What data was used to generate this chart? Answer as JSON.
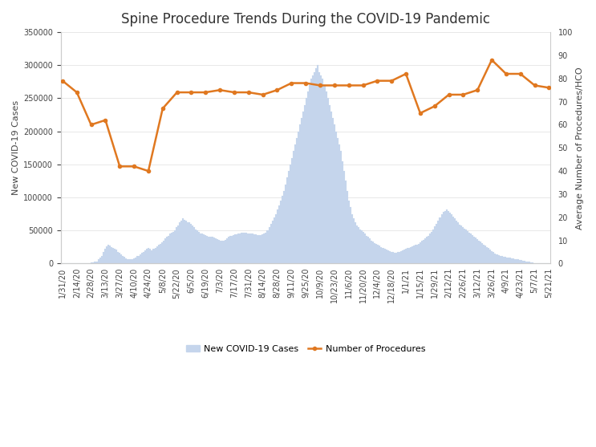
{
  "title": "Spine Procedure Trends During the COVID-19 Pandemic",
  "ylabel_left": "New COVID-19 Cases",
  "ylabel_right": "Average Number of Procedures/HCO",
  "legend_labels": [
    "New COVID-19 Cases",
    "Number of Procedures"
  ],
  "bar_color": "#c5d5ec",
  "bar_edge_color": "#c5d5ec",
  "line_color": "#e07820",
  "line_marker": "o",
  "line_marker_size": 3,
  "line_width": 1.8,
  "ylim_left": [
    0,
    350000
  ],
  "ylim_right": [
    0,
    100
  ],
  "tick_labels": [
    "1/31/20",
    "2/14/20",
    "2/28/20",
    "3/13/20",
    "3/27/20",
    "4/10/20",
    "4/24/20",
    "5/8/20",
    "5/22/20",
    "6/5/20",
    "6/19/20",
    "7/3/20",
    "7/17/20",
    "7/31/20",
    "8/14/20",
    "8/28/20",
    "9/11/20",
    "9/25/20",
    "10/9/20",
    "10/23/20",
    "11/6/20",
    "11/20/20",
    "12/4/20",
    "12/18/20",
    "1/1/21",
    "1/15/21",
    "1/29/21",
    "2/12/21",
    "2/26/21",
    "3/12/21",
    "3/26/21",
    "4/9/21",
    "4/23/21",
    "5/7/21",
    "5/21/21"
  ],
  "procedures": [
    79,
    74,
    60,
    62,
    42,
    42,
    40,
    67,
    74,
    74,
    74,
    75,
    74,
    74,
    73,
    75,
    78,
    78,
    77,
    77,
    77,
    77,
    79,
    79,
    82,
    65,
    68,
    73,
    73,
    75,
    88,
    82,
    82,
    77,
    76
  ],
  "covid_cases_daily": [
    0,
    1,
    1,
    1,
    2,
    3,
    3,
    5,
    5,
    7,
    10,
    15,
    20,
    50,
    80,
    200,
    400,
    800,
    1200,
    1800,
    2500,
    3500,
    6000,
    9000,
    12000,
    17000,
    22000,
    26000,
    28000,
    27000,
    25000,
    23000,
    22000,
    21000,
    18000,
    16000,
    14000,
    12000,
    10000,
    8000,
    7000,
    6500,
    6000,
    7000,
    8000,
    9500,
    11000,
    12000,
    14000,
    16000,
    18000,
    20000,
    22000,
    24000,
    22000,
    20000,
    22000,
    24000,
    26000,
    28000,
    30000,
    32000,
    35000,
    38000,
    40000,
    42000,
    45000,
    47000,
    48000,
    50000,
    55000,
    58000,
    62000,
    65000,
    68000,
    66000,
    65000,
    63000,
    62000,
    60000,
    58000,
    55000,
    52000,
    50000,
    48000,
    46000,
    45000,
    44000,
    43000,
    42000,
    41000,
    40000,
    40000,
    39000,
    38000,
    37000,
    36000,
    35000,
    35000,
    35000,
    36000,
    38000,
    40000,
    42000,
    42000,
    43000,
    44000,
    44000,
    45000,
    46000,
    47000,
    47000,
    47000,
    47000,
    46000,
    46000,
    45000,
    45000,
    44000,
    44000,
    43000,
    43000,
    43000,
    44000,
    45000,
    47000,
    50000,
    55000,
    60000,
    65000,
    70000,
    75000,
    82000,
    88000,
    95000,
    103000,
    110000,
    120000,
    130000,
    140000,
    150000,
    160000,
    170000,
    180000,
    190000,
    200000,
    210000,
    220000,
    230000,
    240000,
    250000,
    260000,
    270000,
    280000,
    285000,
    290000,
    295000,
    300000,
    290000,
    285000,
    280000,
    270000,
    260000,
    250000,
    240000,
    230000,
    220000,
    210000,
    200000,
    190000,
    180000,
    170000,
    155000,
    140000,
    125000,
    110000,
    95000,
    85000,
    75000,
    68000,
    62000,
    58000,
    55000,
    52000,
    50000,
    48000,
    45000,
    42000,
    40000,
    38000,
    35000,
    33000,
    31000,
    30000,
    28000,
    27000,
    25000,
    23000,
    22000,
    21000,
    20000,
    19000,
    18000,
    17000,
    16000,
    16000,
    17000,
    18000,
    19000,
    20000,
    21000,
    22000,
    23000,
    24000,
    25000,
    26000,
    27000,
    28000,
    29000,
    30000,
    32000,
    34000,
    36000,
    38000,
    40000,
    42000,
    45000,
    48000,
    52000,
    56000,
    60000,
    65000,
    70000,
    75000,
    78000,
    80000,
    82000,
    80000,
    77000,
    74000,
    71000,
    68000,
    65000,
    62000,
    59000,
    57000,
    55000,
    53000,
    51000,
    49000,
    47000,
    45000,
    43000,
    41000,
    39000,
    37000,
    35000,
    33000,
    31000,
    29000,
    27000,
    25000,
    23000,
    21000,
    19000,
    17000,
    15000,
    14000,
    13000,
    12000,
    11000,
    10500,
    10000,
    9500,
    9000,
    8500,
    8000,
    7500,
    7000,
    6500,
    6000,
    5500,
    5000,
    4500,
    4000,
    3500,
    3000,
    2500,
    2000,
    1500,
    1000,
    800,
    600,
    400,
    300,
    200,
    150,
    100,
    50,
    10
  ],
  "background_color": "#ffffff",
  "grid_color": "#e8e8e8",
  "title_fontsize": 12,
  "axis_label_fontsize": 8,
  "tick_fontsize": 7
}
